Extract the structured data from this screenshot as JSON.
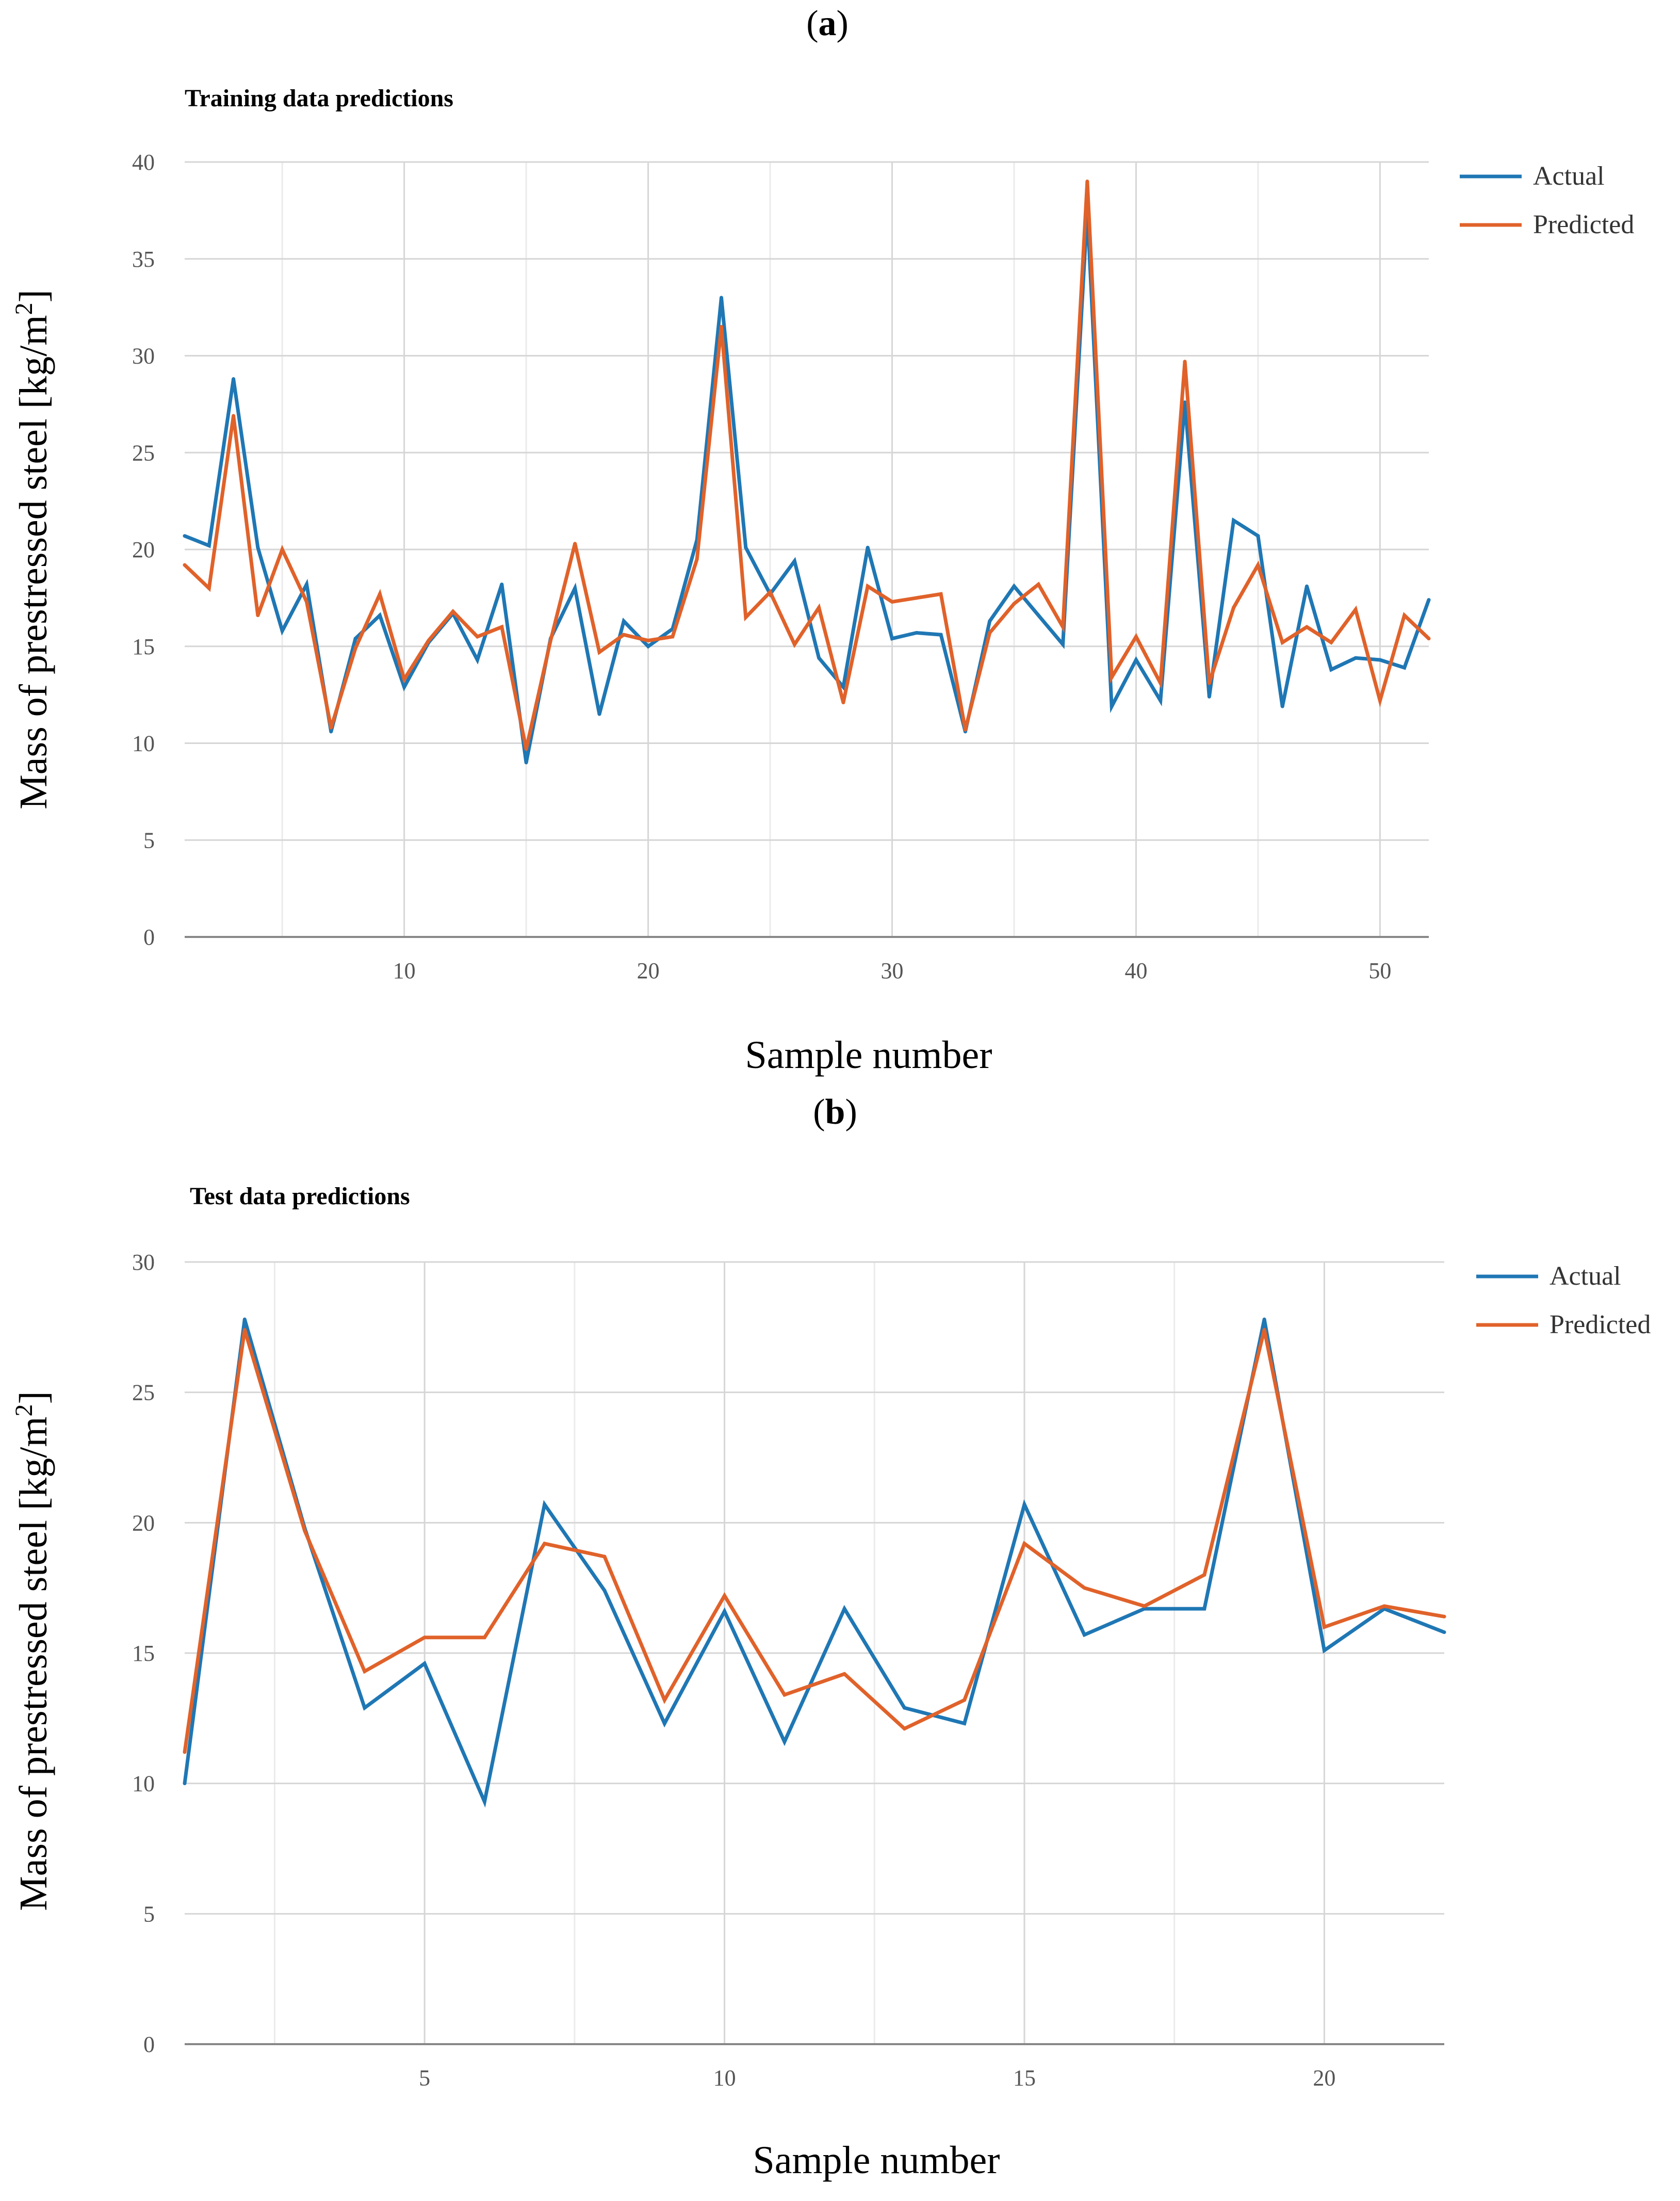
{
  "colors": {
    "actual": "#1f77b4",
    "predicted": "#e0622a",
    "grid_major": "#d6d6d6",
    "grid_minor": "#ebebeb",
    "axis": "#888888",
    "tick_text": "#555555"
  },
  "chart_data": [
    {
      "panel_label": "(a)",
      "panel_letter": "a",
      "type": "line",
      "title": "Training data predictions",
      "xlabel": "Sample number",
      "ylabel": "Mass of prestressed steel [kg/m2]",
      "ylabel_main": "Mass of prestressed steel [kg/m",
      "ylabel_sup": "2",
      "ylabel_end": "]",
      "xlim": [
        1,
        52
      ],
      "ylim": [
        0,
        40
      ],
      "yticks": [
        0,
        5,
        10,
        15,
        20,
        25,
        30,
        35,
        40
      ],
      "xticks": [
        10,
        20,
        30,
        40,
        50
      ],
      "legend_position": "top-right",
      "series": [
        {
          "name": "Actual",
          "color_key": "actual",
          "values": [
            20.7,
            20.2,
            28.8,
            20.1,
            15.8,
            18.2,
            10.6,
            15.4,
            16.6,
            12.9,
            15.2,
            16.7,
            14.3,
            18.2,
            9.0,
            15.4,
            18.0,
            11.5,
            16.3,
            15.0,
            15.9,
            20.5,
            33.0,
            20.1,
            17.7,
            19.4,
            14.4,
            12.9,
            20.1,
            15.4,
            15.7,
            15.6,
            10.6,
            16.3,
            18.1,
            16.6,
            15.1,
            37.5,
            11.9,
            14.3,
            12.2,
            27.6,
            12.4,
            21.5,
            20.7,
            11.9,
            18.1,
            13.8,
            14.4,
            14.3,
            13.9,
            17.4
          ]
        },
        {
          "name": "Predicted",
          "color_key": "predicted",
          "values": [
            19.2,
            18.0,
            26.9,
            16.6,
            20.0,
            17.3,
            10.8,
            14.9,
            17.7,
            13.3,
            15.3,
            16.8,
            15.5,
            16.0,
            9.7,
            15.3,
            20.3,
            14.7,
            15.6,
            15.3,
            15.5,
            19.5,
            31.5,
            16.5,
            17.8,
            15.1,
            17.0,
            12.1,
            18.1,
            17.3,
            17.5,
            17.7,
            10.7,
            15.7,
            17.2,
            18.2,
            16.0,
            39.0,
            13.4,
            15.5,
            13.1,
            29.7,
            13.1,
            17.0,
            19.2,
            15.2,
            16.0,
            15.2,
            16.9,
            12.2,
            16.6,
            15.4
          ]
        }
      ]
    },
    {
      "panel_label": "(b)",
      "panel_letter": "b",
      "type": "line",
      "title": "Test data predictions",
      "xlabel": "Sample number",
      "ylabel": "Mass of prestressed steel [kg/m2]",
      "ylabel_main": "Mass of prestressed steel [kg/m",
      "ylabel_sup": "2",
      "ylabel_end": "]",
      "xlim": [
        1,
        22
      ],
      "ylim": [
        0,
        30
      ],
      "yticks": [
        0,
        5,
        10,
        15,
        20,
        25,
        30
      ],
      "xticks": [
        5,
        10,
        15,
        20
      ],
      "legend_position": "top-right",
      "series": [
        {
          "name": "Actual",
          "color_key": "actual",
          "values": [
            10.0,
            27.8,
            19.8,
            12.9,
            14.6,
            9.3,
            20.7,
            17.4,
            12.3,
            16.6,
            11.6,
            16.7,
            12.9,
            12.3,
            20.7,
            15.7,
            16.7,
            16.7,
            27.8,
            15.1,
            16.7,
            15.8
          ]
        },
        {
          "name": "Predicted",
          "color_key": "predicted",
          "values": [
            11.2,
            27.4,
            19.7,
            14.3,
            15.6,
            15.6,
            19.2,
            18.7,
            13.2,
            17.2,
            13.4,
            14.2,
            12.1,
            13.2,
            19.2,
            17.5,
            16.8,
            18.0,
            27.4,
            16.0,
            16.8,
            16.4
          ]
        }
      ]
    }
  ]
}
